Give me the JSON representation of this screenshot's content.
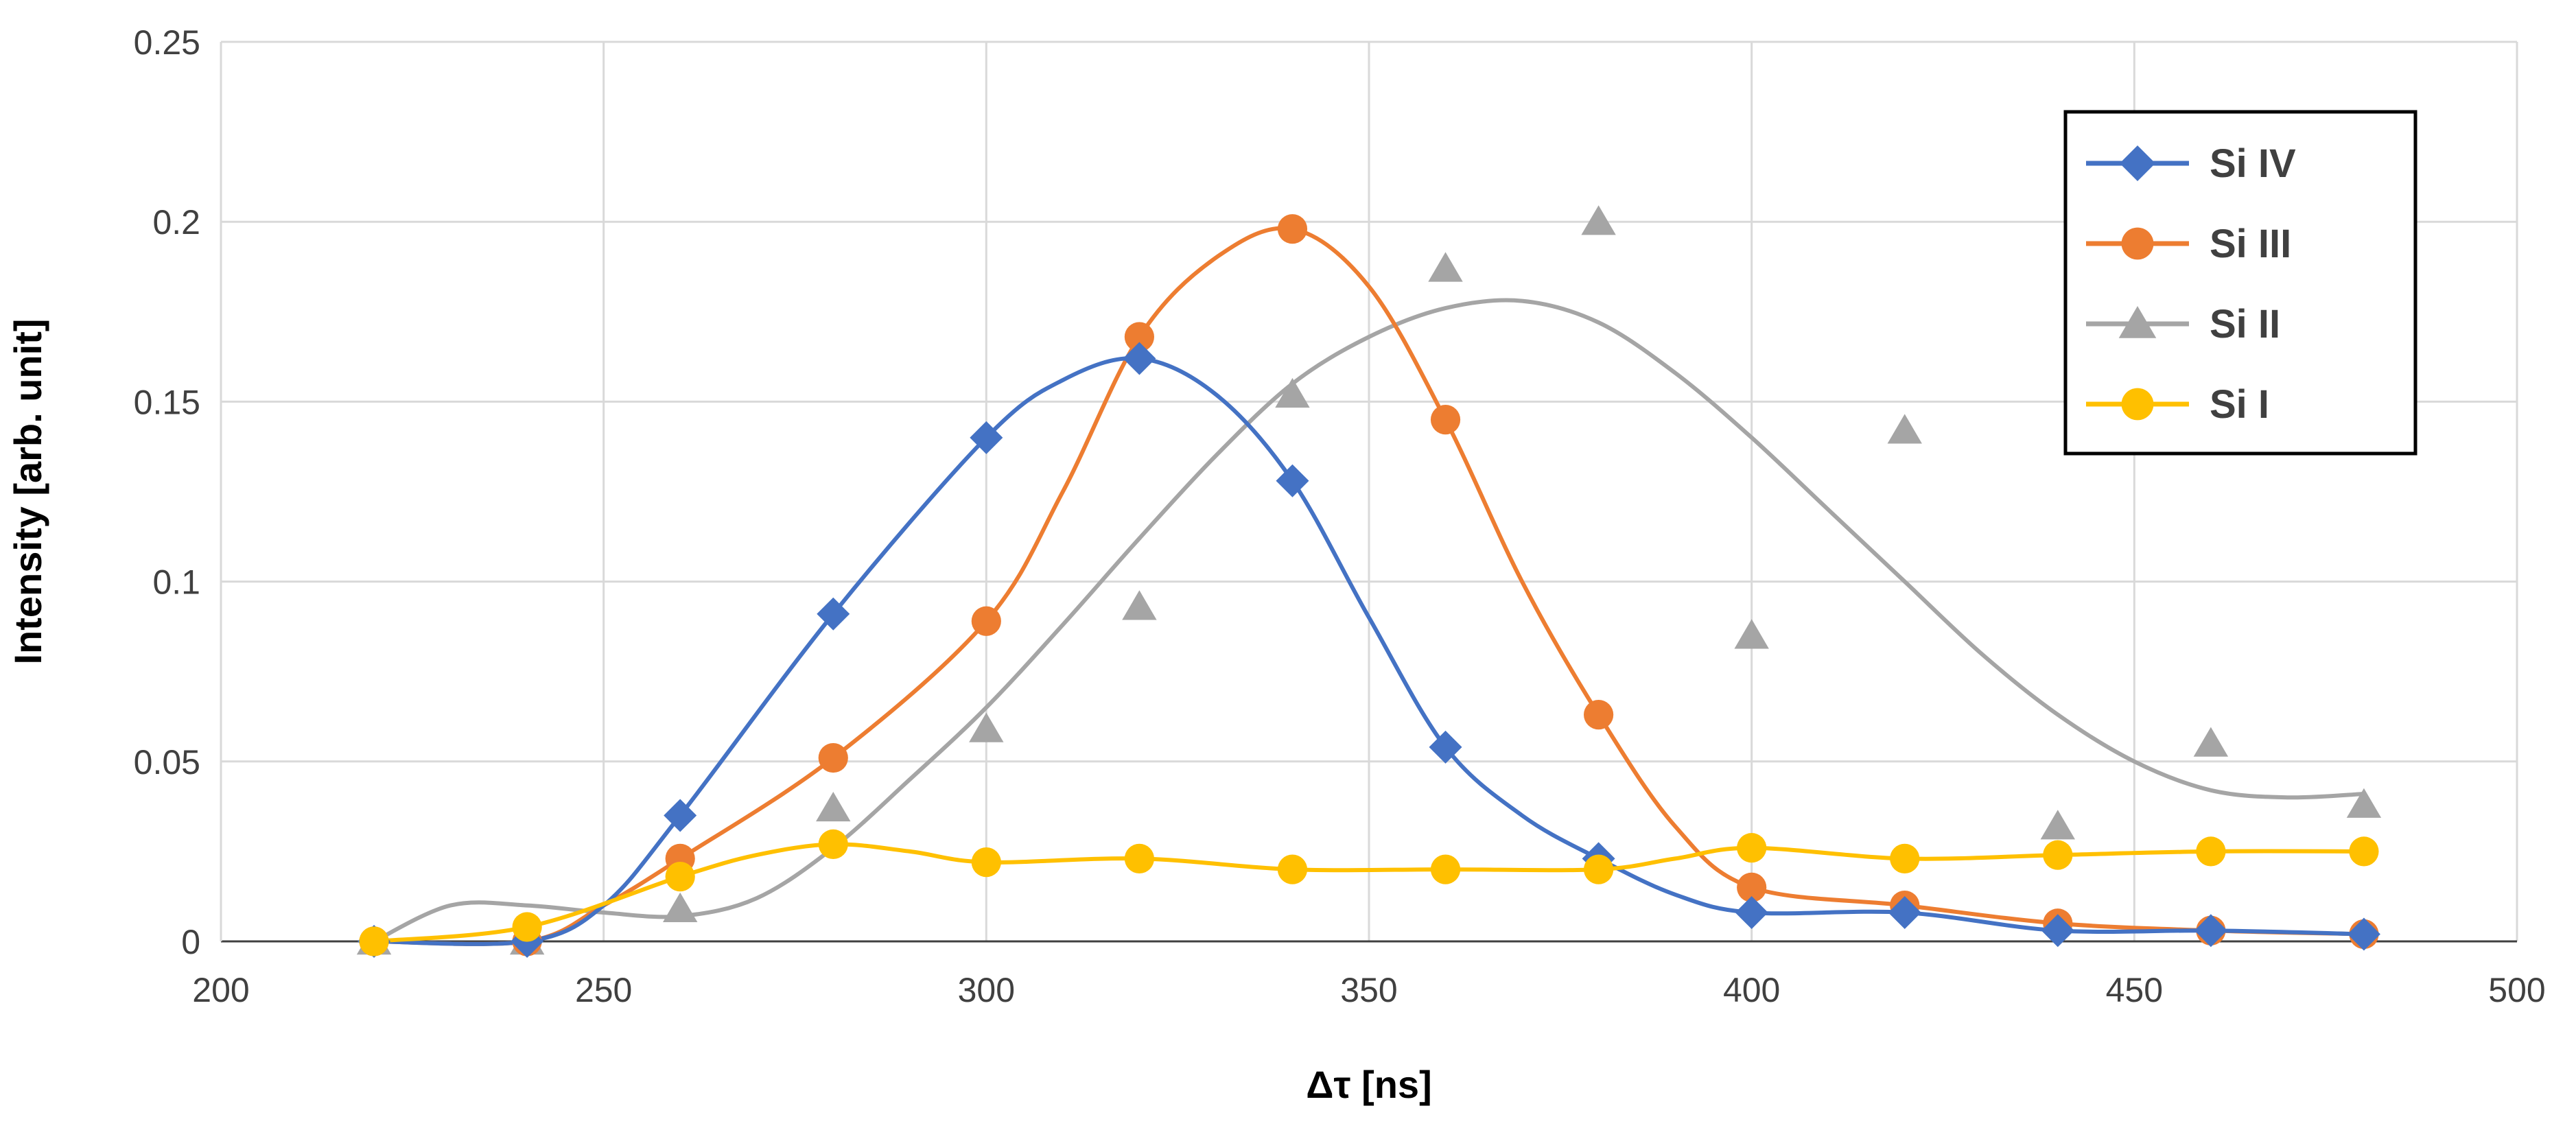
{
  "chart_data": {
    "type": "scatter",
    "title": "",
    "xlabel": "Δτ  [ns]",
    "ylabel": "Intensity [arb. unit]",
    "xlim": [
      200,
      500
    ],
    "ylim": [
      0,
      0.25
    ],
    "xticks": [
      "200",
      "250",
      "300",
      "350",
      "400",
      "450",
      "500"
    ],
    "yticks": [
      "0",
      "0.05",
      "0.1",
      "0.15",
      "0.2",
      "0.25"
    ],
    "grid": true,
    "legend_position": "top-right",
    "series": [
      {
        "name": "Si IV",
        "color": "#4472C4",
        "marker": "diamond",
        "points": [
          [
            220,
            0.0
          ],
          [
            240,
            0.0
          ],
          [
            260,
            0.035
          ],
          [
            280,
            0.091
          ],
          [
            300,
            0.14
          ],
          [
            320,
            0.162
          ],
          [
            340,
            0.128
          ],
          [
            360,
            0.054
          ],
          [
            380,
            0.023
          ],
          [
            400,
            0.008
          ],
          [
            420,
            0.008
          ],
          [
            440,
            0.003
          ],
          [
            460,
            0.003
          ],
          [
            480,
            0.002
          ]
        ],
        "curve": [
          [
            220,
            0.0
          ],
          [
            240,
            0.0
          ],
          [
            250,
            0.01
          ],
          [
            260,
            0.035
          ],
          [
            280,
            0.091
          ],
          [
            300,
            0.14
          ],
          [
            310,
            0.156
          ],
          [
            320,
            0.162
          ],
          [
            330,
            0.152
          ],
          [
            340,
            0.128
          ],
          [
            350,
            0.09
          ],
          [
            360,
            0.054
          ],
          [
            370,
            0.035
          ],
          [
            380,
            0.023
          ],
          [
            390,
            0.013
          ],
          [
            400,
            0.008
          ],
          [
            420,
            0.008
          ],
          [
            440,
            0.003
          ],
          [
            460,
            0.003
          ],
          [
            480,
            0.002
          ]
        ]
      },
      {
        "name": "Si III",
        "color": "#ED7D31",
        "marker": "circle",
        "points": [
          [
            220,
            0.0
          ],
          [
            240,
            0.0
          ],
          [
            260,
            0.023
          ],
          [
            280,
            0.051
          ],
          [
            300,
            0.089
          ],
          [
            320,
            0.168
          ],
          [
            340,
            0.198
          ],
          [
            360,
            0.145
          ],
          [
            380,
            0.063
          ],
          [
            400,
            0.015
          ],
          [
            420,
            0.01
          ],
          [
            440,
            0.005
          ],
          [
            460,
            0.003
          ],
          [
            480,
            0.002
          ]
        ],
        "curve": [
          [
            220,
            0.0
          ],
          [
            240,
            0.0
          ],
          [
            250,
            0.01
          ],
          [
            260,
            0.023
          ],
          [
            280,
            0.051
          ],
          [
            300,
            0.089
          ],
          [
            310,
            0.125
          ],
          [
            320,
            0.168
          ],
          [
            330,
            0.19
          ],
          [
            340,
            0.198
          ],
          [
            350,
            0.182
          ],
          [
            360,
            0.145
          ],
          [
            370,
            0.1
          ],
          [
            380,
            0.063
          ],
          [
            390,
            0.032
          ],
          [
            400,
            0.015
          ],
          [
            420,
            0.01
          ],
          [
            440,
            0.005
          ],
          [
            460,
            0.003
          ],
          [
            480,
            0.002
          ]
        ]
      },
      {
        "name": "Si II",
        "color": "#A5A5A5",
        "marker": "triangle",
        "points": [
          [
            220,
            0.0
          ],
          [
            240,
            0.0
          ],
          [
            260,
            0.009
          ],
          [
            280,
            0.037
          ],
          [
            300,
            0.059
          ],
          [
            320,
            0.093
          ],
          [
            340,
            0.152
          ],
          [
            360,
            0.187
          ],
          [
            380,
            0.2
          ],
          [
            400,
            0.085
          ],
          [
            420,
            0.142
          ],
          [
            440,
            0.032
          ],
          [
            460,
            0.055
          ],
          [
            480,
            0.038
          ]
        ],
        "curve": [
          [
            220,
            0.0
          ],
          [
            230,
            0.01
          ],
          [
            240,
            0.01
          ],
          [
            250,
            0.008
          ],
          [
            260,
            0.007
          ],
          [
            270,
            0.012
          ],
          [
            280,
            0.026
          ],
          [
            290,
            0.045
          ],
          [
            300,
            0.065
          ],
          [
            310,
            0.088
          ],
          [
            320,
            0.112
          ],
          [
            330,
            0.135
          ],
          [
            340,
            0.155
          ],
          [
            350,
            0.168
          ],
          [
            360,
            0.176
          ],
          [
            370,
            0.178
          ],
          [
            380,
            0.172
          ],
          [
            390,
            0.158
          ],
          [
            400,
            0.14
          ],
          [
            410,
            0.12
          ],
          [
            420,
            0.1
          ],
          [
            430,
            0.08
          ],
          [
            440,
            0.063
          ],
          [
            450,
            0.05
          ],
          [
            460,
            0.042
          ],
          [
            470,
            0.04
          ],
          [
            480,
            0.041
          ]
        ]
      },
      {
        "name": "Si I",
        "color": "#FFC000",
        "marker": "circle",
        "points": [
          [
            220,
            0.0
          ],
          [
            240,
            0.004
          ],
          [
            260,
            0.018
          ],
          [
            280,
            0.027
          ],
          [
            300,
            0.022
          ],
          [
            320,
            0.023
          ],
          [
            340,
            0.02
          ],
          [
            360,
            0.02
          ],
          [
            380,
            0.02
          ],
          [
            400,
            0.026
          ],
          [
            420,
            0.023
          ],
          [
            440,
            0.024
          ],
          [
            460,
            0.025
          ],
          [
            480,
            0.025
          ]
        ],
        "curve": [
          [
            220,
            0.0
          ],
          [
            240,
            0.004
          ],
          [
            260,
            0.018
          ],
          [
            270,
            0.024
          ],
          [
            280,
            0.027
          ],
          [
            290,
            0.025
          ],
          [
            300,
            0.022
          ],
          [
            320,
            0.023
          ],
          [
            340,
            0.02
          ],
          [
            360,
            0.02
          ],
          [
            380,
            0.02
          ],
          [
            390,
            0.023
          ],
          [
            400,
            0.026
          ],
          [
            420,
            0.023
          ],
          [
            440,
            0.024
          ],
          [
            460,
            0.025
          ],
          [
            480,
            0.025
          ]
        ]
      }
    ]
  }
}
